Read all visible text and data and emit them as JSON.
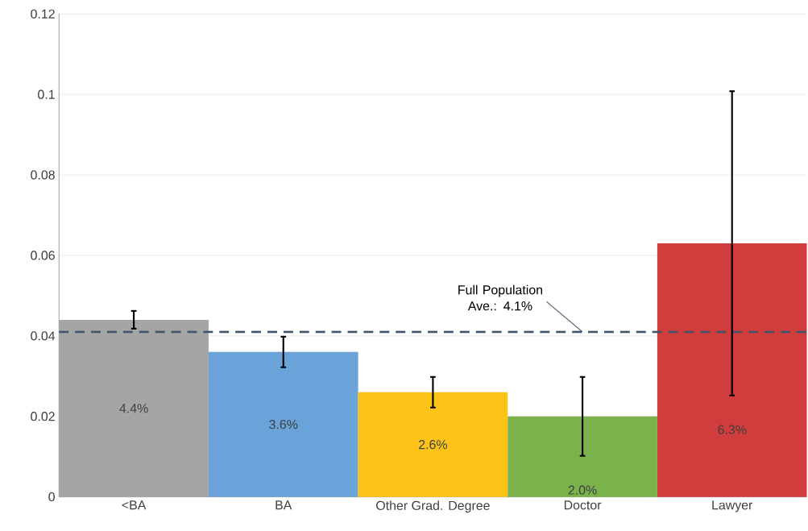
{
  "chart_data": {
    "type": "bar",
    "categories": [
      "<BA",
      "BA",
      "Other Grad. Degree",
      "Doctor",
      "Lawyer"
    ],
    "values": [
      0.044,
      0.036,
      0.026,
      0.02,
      0.063
    ],
    "colors": [
      "#a5a5a5",
      "#6aa3d9",
      "#fcc419",
      "#7ab24c",
      "#d13c3c"
    ],
    "errors": [
      [
        0.0418,
        0.0462
      ],
      [
        0.0322,
        0.0398
      ],
      [
        0.0222,
        0.0298
      ],
      [
        0.0102,
        0.0298
      ],
      [
        0.0252,
        0.1008
      ]
    ],
    "value_labels": [
      "4.4%",
      "3.6%",
      "2.6%",
      "2.0%",
      "6.3%"
    ],
    "ylim": [
      0,
      0.12
    ],
    "yticks": [
      0,
      0.02,
      0.04,
      0.06,
      0.08,
      0.1,
      0.12
    ],
    "grid": "y",
    "ref_lines": [
      {
        "axis": "y",
        "value": 0.041,
        "label": "Full Population Ave.: 4.1%",
        "color": "#44546a",
        "line_style": "dashed"
      }
    ]
  }
}
